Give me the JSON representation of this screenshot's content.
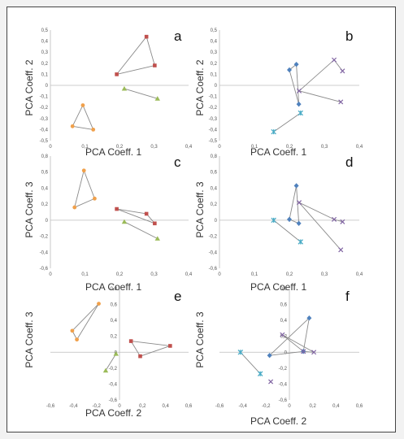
{
  "chart_data": [
    {
      "panel": "a",
      "type": "scatter",
      "xlabel": "PCA Coeff. 1",
      "ylabel": "PCA Coeff. 2",
      "xlim": [
        0,
        0.4
      ],
      "ylim": [
        -0.5,
        0.5
      ],
      "xticks": [
        "0",
        "0,1",
        "0,2",
        "0,3",
        "0,4"
      ],
      "yticks": [
        "0,5",
        "0,4",
        "0,3",
        "0,2",
        "0,1",
        "0",
        "-0,1",
        "-0,2",
        "-0,3",
        "-0,4",
        "-0,5"
      ],
      "grid": false,
      "legend": "none",
      "series": [
        {
          "marker": "circle",
          "color": "#f0a04b",
          "points": [
            [
              0.064,
              -0.37
            ],
            [
              0.094,
              -0.18
            ],
            [
              0.124,
              -0.4
            ]
          ],
          "edges": [
            [
              0,
              1
            ],
            [
              1,
              2
            ],
            [
              2,
              0
            ]
          ]
        },
        {
          "marker": "square",
          "color": "#c0504d",
          "points": [
            [
              0.192,
              0.1
            ],
            [
              0.278,
              0.44
            ],
            [
              0.302,
              0.18
            ]
          ],
          "edges": [
            [
              0,
              1
            ],
            [
              1,
              2
            ],
            [
              2,
              0
            ]
          ]
        },
        {
          "marker": "triangle",
          "color": "#9bbb59",
          "points": [
            [
              0.214,
              -0.03
            ],
            [
              0.31,
              -0.12
            ]
          ],
          "edges": [
            [
              0,
              1
            ]
          ]
        }
      ]
    },
    {
      "panel": "b",
      "type": "scatter",
      "xlabel": "PCA Coeff. 1",
      "ylabel": "PCA Coeff. 2",
      "xlim": [
        0,
        0.4
      ],
      "ylim": [
        -0.5,
        0.5
      ],
      "xticks": [
        "0",
        "0,1",
        "0,2",
        "0,3",
        "0,4"
      ],
      "yticks": [
        "0,5",
        "0,4",
        "0,3",
        "0,2",
        "0,1",
        "0",
        "-0,1",
        "-0,2",
        "-0,3",
        "-0,4",
        "-0,5"
      ],
      "grid": false,
      "legend": "none",
      "series": [
        {
          "marker": "diamond",
          "color": "#4f81bd",
          "points": [
            [
              0.2,
              0.14
            ],
            [
              0.22,
              0.19
            ],
            [
              0.227,
              -0.17
            ]
          ],
          "edges": [
            [
              0,
              1
            ],
            [
              1,
              2
            ],
            [
              2,
              0
            ]
          ]
        },
        {
          "marker": "star",
          "color": "#4bacc6",
          "points": [
            [
              0.155,
              -0.42
            ],
            [
              0.232,
              -0.25
            ]
          ],
          "edges": [
            [
              0,
              1
            ]
          ]
        },
        {
          "marker": "cross",
          "color": "#8064a2",
          "points": [
            [
              0.228,
              -0.05
            ],
            [
              0.328,
              0.23
            ],
            [
              0.352,
              0.13
            ],
            [
              0.347,
              -0.15
            ]
          ],
          "edges": [
            [
              0,
              1
            ],
            [
              1,
              2
            ],
            [
              0,
              3
            ]
          ]
        }
      ]
    },
    {
      "panel": "c",
      "type": "scatter",
      "xlabel": "PCA Coeff. 1",
      "ylabel": "PCA Coeff. 3",
      "xlim": [
        0,
        0.4
      ],
      "ylim": [
        -0.6,
        0.8
      ],
      "xticks": [
        "0",
        "0,1",
        "0,2",
        "0,3",
        "0,4"
      ],
      "yticks": [
        "0,8",
        "0,6",
        "0,4",
        "0,2",
        "0",
        "-0,2",
        "-0,4",
        "-0,6"
      ],
      "grid": false,
      "legend": "none",
      "series": [
        {
          "marker": "circle",
          "color": "#f0a04b",
          "points": [
            [
              0.07,
              0.16
            ],
            [
              0.097,
              0.62
            ],
            [
              0.128,
              0.27
            ]
          ],
          "edges": [
            [
              0,
              1
            ],
            [
              1,
              2
            ],
            [
              2,
              0
            ]
          ]
        },
        {
          "marker": "square",
          "color": "#c0504d",
          "points": [
            [
              0.192,
              0.14
            ],
            [
              0.278,
              0.08
            ],
            [
              0.302,
              -0.04
            ]
          ],
          "edges": [
            [
              0,
              1
            ],
            [
              1,
              2
            ],
            [
              2,
              0
            ]
          ]
        },
        {
          "marker": "triangle",
          "color": "#9bbb59",
          "points": [
            [
              0.214,
              -0.02
            ],
            [
              0.31,
              -0.23
            ]
          ],
          "edges": [
            [
              0,
              1
            ]
          ]
        }
      ]
    },
    {
      "panel": "d",
      "type": "scatter",
      "xlabel": "PCA Coeff. 1",
      "ylabel": "PCA Coeff. 3",
      "xlim": [
        0,
        0.4
      ],
      "ylim": [
        -0.6,
        0.8
      ],
      "xticks": [
        "0",
        "0,1",
        "0,2",
        "0,3",
        "0,4"
      ],
      "yticks": [
        "0,8",
        "0,6",
        "0,4",
        "0,2",
        "0",
        "-0,2",
        "-0,4",
        "-0,6"
      ],
      "grid": false,
      "legend": "none",
      "series": [
        {
          "marker": "diamond",
          "color": "#4f81bd",
          "points": [
            [
              0.2,
              0.01
            ],
            [
              0.22,
              0.43
            ],
            [
              0.227,
              -0.04
            ]
          ],
          "edges": [
            [
              0,
              1
            ],
            [
              1,
              2
            ],
            [
              2,
              0
            ]
          ]
        },
        {
          "marker": "star",
          "color": "#4bacc6",
          "points": [
            [
              0.155,
              0.0
            ],
            [
              0.232,
              -0.27
            ]
          ],
          "edges": [
            [
              0,
              1
            ]
          ]
        },
        {
          "marker": "cross",
          "color": "#8064a2",
          "points": [
            [
              0.228,
              0.22
            ],
            [
              0.328,
              0.01
            ],
            [
              0.352,
              -0.02
            ],
            [
              0.347,
              -0.37
            ]
          ],
          "edges": [
            [
              0,
              1
            ],
            [
              1,
              2
            ],
            [
              0,
              3
            ]
          ]
        }
      ]
    },
    {
      "panel": "e",
      "type": "scatter",
      "xlabel": "PCA Coeff. 2",
      "ylabel": "PCA Coeff. 3",
      "xlim": [
        -0.6,
        0.6
      ],
      "ylim": [
        -0.6,
        0.8
      ],
      "xticks": [
        "-0,6",
        "-0,4",
        "-0,2",
        "0",
        "0,2",
        "0,4",
        "0,6"
      ],
      "yticks": [
        "0,8",
        "0,6",
        "0,4",
        "0,2",
        "0",
        "-0,2",
        "-0,4",
        "-0,6"
      ],
      "grid": false,
      "legend": "none",
      "series": [
        {
          "marker": "circle",
          "color": "#f0a04b",
          "points": [
            [
              -0.41,
              0.27
            ],
            [
              -0.37,
              0.16
            ],
            [
              -0.18,
              0.61
            ]
          ],
          "edges": [
            [
              0,
              1
            ],
            [
              1,
              2
            ],
            [
              2,
              0
            ]
          ]
        },
        {
          "marker": "square",
          "color": "#c0504d",
          "points": [
            [
              0.1,
              0.14
            ],
            [
              0.18,
              -0.05
            ],
            [
              0.44,
              0.08
            ]
          ],
          "edges": [
            [
              0,
              1
            ],
            [
              1,
              2
            ],
            [
              2,
              0
            ]
          ]
        },
        {
          "marker": "triangle",
          "color": "#9bbb59",
          "points": [
            [
              -0.12,
              -0.23
            ],
            [
              -0.03,
              -0.02
            ]
          ],
          "edges": [
            [
              0,
              1
            ]
          ]
        }
      ]
    },
    {
      "panel": "f",
      "type": "scatter",
      "xlabel": "PCA Coeff. 2",
      "ylabel": "PCA Coeff. 3",
      "xlim": [
        -0.6,
        0.6
      ],
      "ylim": [
        -0.6,
        0.8
      ],
      "xticks": [
        "-0,6",
        "-0,4",
        "-0,2",
        "0",
        "0,2",
        "0,4",
        "0,6"
      ],
      "yticks": [
        "0,8",
        "0,6",
        "0,4",
        "0,2",
        "0",
        "-0,2",
        "-0,4",
        "-0,6"
      ],
      "grid": false,
      "legend": "none",
      "series": [
        {
          "marker": "diamond",
          "color": "#4f81bd",
          "points": [
            [
              -0.17,
              -0.04
            ],
            [
              0.17,
              0.43
            ],
            [
              0.12,
              0.01
            ]
          ],
          "edges": [
            [
              0,
              1
            ],
            [
              1,
              2
            ],
            [
              2,
              0
            ]
          ]
        },
        {
          "marker": "star",
          "color": "#4bacc6",
          "points": [
            [
              -0.42,
              0.0
            ],
            [
              -0.25,
              -0.27
            ]
          ],
          "edges": [
            [
              0,
              1
            ]
          ]
        },
        {
          "marker": "cross",
          "color": "#8064a2",
          "points": [
            [
              -0.06,
              0.22
            ],
            [
              0.12,
              0.01
            ],
            [
              0.21,
              0.0
            ],
            [
              -0.16,
              -0.37
            ]
          ],
          "edges": [
            [
              0,
              1
            ],
            [
              1,
              2
            ],
            [
              0,
              2
            ]
          ]
        }
      ]
    }
  ]
}
